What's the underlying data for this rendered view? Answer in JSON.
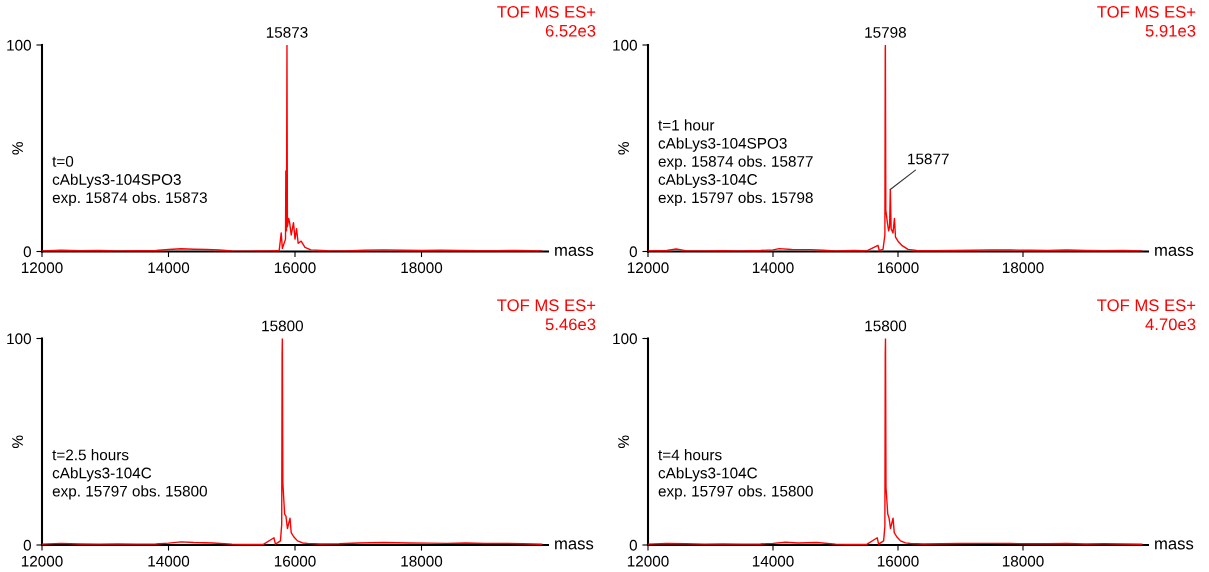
{
  "chart_data": [
    {
      "type": "line",
      "title": "TOF MS ES+",
      "subtitle": "6.52e3",
      "xlabel": "mass",
      "ylabel": "%",
      "xlim": [
        12000,
        20000
      ],
      "xticks": [
        12000,
        14000,
        16000,
        18000
      ],
      "ylim": [
        0,
        100
      ],
      "yticks": [
        0,
        100
      ],
      "series": [
        {
          "color": "#ff0000",
          "x": [
            12000,
            12300,
            12600,
            12900,
            13200,
            13500,
            13800,
            14000,
            14200,
            14400,
            14600,
            14800,
            15000,
            15300,
            15600,
            15750,
            15782,
            15800,
            15850,
            15855,
            15865,
            15873,
            15880,
            15900,
            15915,
            15940,
            15976,
            16000,
            16025,
            16050,
            16097,
            16158,
            16250,
            16500,
            16800,
            17100,
            17400,
            17700,
            18000,
            18300,
            18600,
            18900,
            19200,
            19500,
            19900
          ],
          "values": [
            0.3,
            0.6,
            0.4,
            0.5,
            0.3,
            0.4,
            0.5,
            1.0,
            1.3,
            1.1,
            1.0,
            0.7,
            0.3,
            0.2,
            0.3,
            0.5,
            9,
            1.5,
            6,
            39,
            10,
            100,
            12,
            16,
            14,
            8,
            14,
            6,
            11,
            4,
            5,
            2,
            0.8,
            0.4,
            0.3,
            0.6,
            0.8,
            0.6,
            0.5,
            0.6,
            0.5,
            0.4,
            0.4,
            0.5,
            0.3
          ]
        }
      ],
      "annotations": [
        {
          "text": "15873",
          "x": 15873,
          "y": 100
        },
        "t=0\ncAbLys3-104SPO3\nexp. 15874 obs. 15873"
      ]
    },
    {
      "type": "line",
      "title": "TOF MS ES+",
      "subtitle": "5.91e3",
      "xlabel": "mass",
      "ylabel": "%",
      "xlim": [
        12000,
        20000
      ],
      "xticks": [
        12000,
        14000,
        16000,
        18000
      ],
      "ylim": [
        0,
        100
      ],
      "yticks": [
        0,
        100
      ],
      "series": [
        {
          "color": "#ff0000",
          "x": [
            12000,
            12300,
            12450,
            12600,
            12900,
            13200,
            13500,
            13800,
            14000,
            14100,
            14300,
            14600,
            14800,
            15000,
            15300,
            15500,
            15680,
            15700,
            15760,
            15790,
            15796,
            15798,
            15805,
            15830,
            15850,
            15865,
            15877,
            15890,
            15920,
            15943,
            15960,
            16000,
            16060,
            16160,
            16300,
            16600,
            16900,
            17200,
            17500,
            17800,
            18100,
            18400,
            18700,
            19000,
            19300,
            19600,
            19900
          ],
          "values": [
            0.3,
            0.5,
            1.2,
            0.4,
            0.3,
            0.4,
            0.3,
            0.5,
            0.8,
            1.4,
            1.0,
            0.9,
            0.6,
            0.3,
            0.5,
            0.3,
            3,
            0.5,
            1,
            8,
            98,
            100,
            20,
            14,
            10,
            12,
            30,
            11,
            9,
            16,
            7,
            5,
            3,
            1,
            0.5,
            0.4,
            0.5,
            0.6,
            0.8,
            0.7,
            0.6,
            0.5,
            0.7,
            0.5,
            0.4,
            0.5,
            0.3
          ]
        }
      ],
      "annotations": [
        {
          "text": "15798",
          "x": 15798,
          "y": 100
        },
        {
          "text": "15877",
          "x": 15877,
          "y": 30
        },
        "t=1 hour\ncAbLys3-104SPO3\nexp. 15874 obs. 15877\ncAbLys3-104C\nexp. 15797 obs. 15798"
      ]
    },
    {
      "type": "line",
      "title": "TOF MS ES+",
      "subtitle": "5.46e3",
      "xlabel": "mass",
      "ylabel": "%",
      "xlim": [
        12000,
        20000
      ],
      "xticks": [
        12000,
        14000,
        16000,
        18000
      ],
      "ylim": [
        0,
        100
      ],
      "yticks": [
        0,
        100
      ],
      "series": [
        {
          "color": "#ff0000",
          "x": [
            12000,
            12300,
            12600,
            12900,
            13200,
            13500,
            13800,
            14000,
            14200,
            14400,
            14700,
            15000,
            15300,
            15500,
            15668,
            15690,
            15770,
            15790,
            15796,
            15800,
            15808,
            15836,
            15857,
            15880,
            15921,
            15940,
            15980,
            16040,
            16120,
            16200,
            16400,
            16700,
            17000,
            17400,
            17800,
            18100,
            18400,
            18700,
            19000,
            19300,
            19600,
            19900
          ],
          "values": [
            0.4,
            0.8,
            0.5,
            0.4,
            0.5,
            0.4,
            0.5,
            0.9,
            1.5,
            1.2,
            1.0,
            0.4,
            0.3,
            0.3,
            3.5,
            0.4,
            2,
            10,
            92,
            100,
            30,
            15,
            14,
            8,
            13,
            6,
            4,
            2,
            1,
            0.8,
            0.5,
            0.6,
            1.0,
            1.2,
            1.0,
            0.9,
            0.8,
            1.0,
            0.7,
            0.8,
            0.6,
            0.4
          ]
        }
      ],
      "annotations": [
        {
          "text": "15800",
          "x": 15800,
          "y": 100
        },
        "t=2.5 hours\ncAbLys3-104C\nexp. 15797 obs. 15800"
      ]
    },
    {
      "type": "line",
      "title": "TOF MS ES+",
      "subtitle": "4.70e3",
      "xlabel": "mass",
      "ylabel": "%",
      "xlim": [
        12000,
        20000
      ],
      "xticks": [
        12000,
        14000,
        16000,
        18000
      ],
      "ylim": [
        0,
        100
      ],
      "yticks": [
        0,
        100
      ],
      "series": [
        {
          "color": "#ff0000",
          "x": [
            12000,
            12300,
            12600,
            12900,
            13200,
            13500,
            13800,
            14000,
            14200,
            14400,
            14700,
            15000,
            15300,
            15500,
            15668,
            15690,
            15770,
            15790,
            15796,
            15800,
            15808,
            15836,
            15857,
            15880,
            15921,
            15940,
            15980,
            16040,
            16120,
            16200,
            16400,
            16700,
            17000,
            17400,
            17800,
            18100,
            18400,
            18700,
            19000,
            19300,
            19600,
            19900
          ],
          "values": [
            0.4,
            0.7,
            0.6,
            0.4,
            0.5,
            0.4,
            0.5,
            0.8,
            1.3,
            1.0,
            1.2,
            0.4,
            0.3,
            0.3,
            3.5,
            0.4,
            2,
            9,
            93,
            100,
            28,
            15,
            13,
            8,
            13,
            6,
            4,
            2,
            1,
            0.7,
            0.5,
            0.6,
            0.7,
            0.8,
            0.7,
            0.6,
            0.6,
            0.7,
            0.5,
            0.6,
            0.5,
            0.4
          ]
        }
      ],
      "annotations": [
        {
          "text": "15800",
          "x": 15800,
          "y": 100
        },
        "t=4 hours\ncAbLys3-104C\nexp. 15797 obs. 15800"
      ]
    }
  ]
}
